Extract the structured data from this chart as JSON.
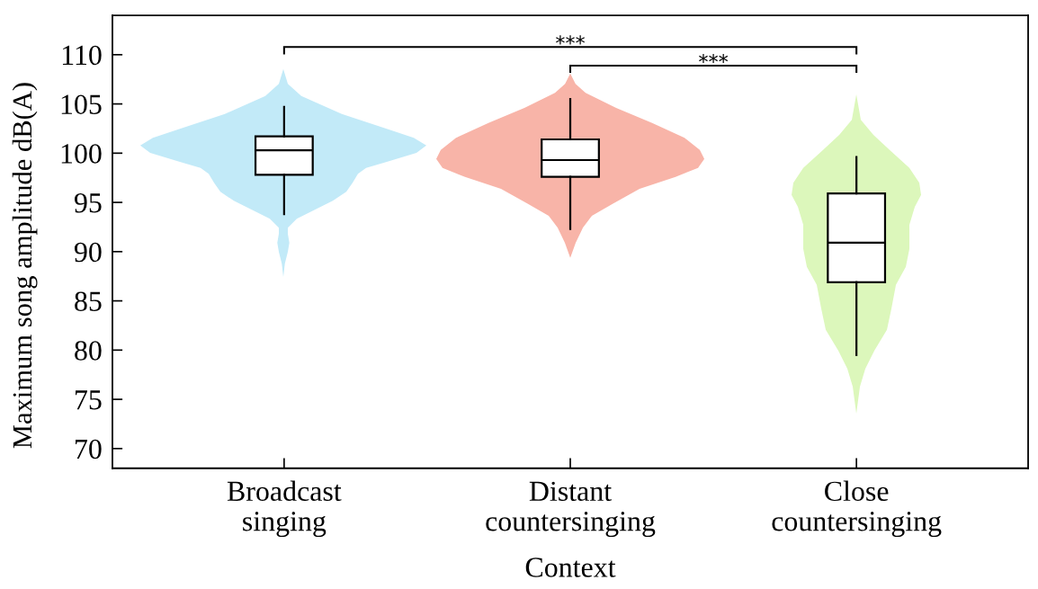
{
  "chart_data": {
    "type": "box",
    "xlabel": "Context",
    "ylabel": "Maximum song amplitude dB(A)",
    "categories": [
      "Broadcast\nsinging",
      "Distant\ncountersinging",
      "Close\ncountersinging"
    ],
    "boxes": [
      {
        "low": 93.8,
        "q1": 97.8,
        "median": 100.3,
        "q3": 101.7,
        "high": 104.7
      },
      {
        "low": 92.3,
        "q1": 97.6,
        "median": 99.3,
        "q3": 101.4,
        "high": 105.5
      },
      {
        "low": 79.5,
        "q1": 86.9,
        "median": 90.9,
        "q3": 95.9,
        "high": 99.6
      }
    ],
    "ylim": [
      68,
      114
    ],
    "yticks": [
      70,
      75,
      80,
      85,
      90,
      95,
      100,
      105,
      110
    ],
    "annotations": [
      "***",
      "***"
    ]
  }
}
